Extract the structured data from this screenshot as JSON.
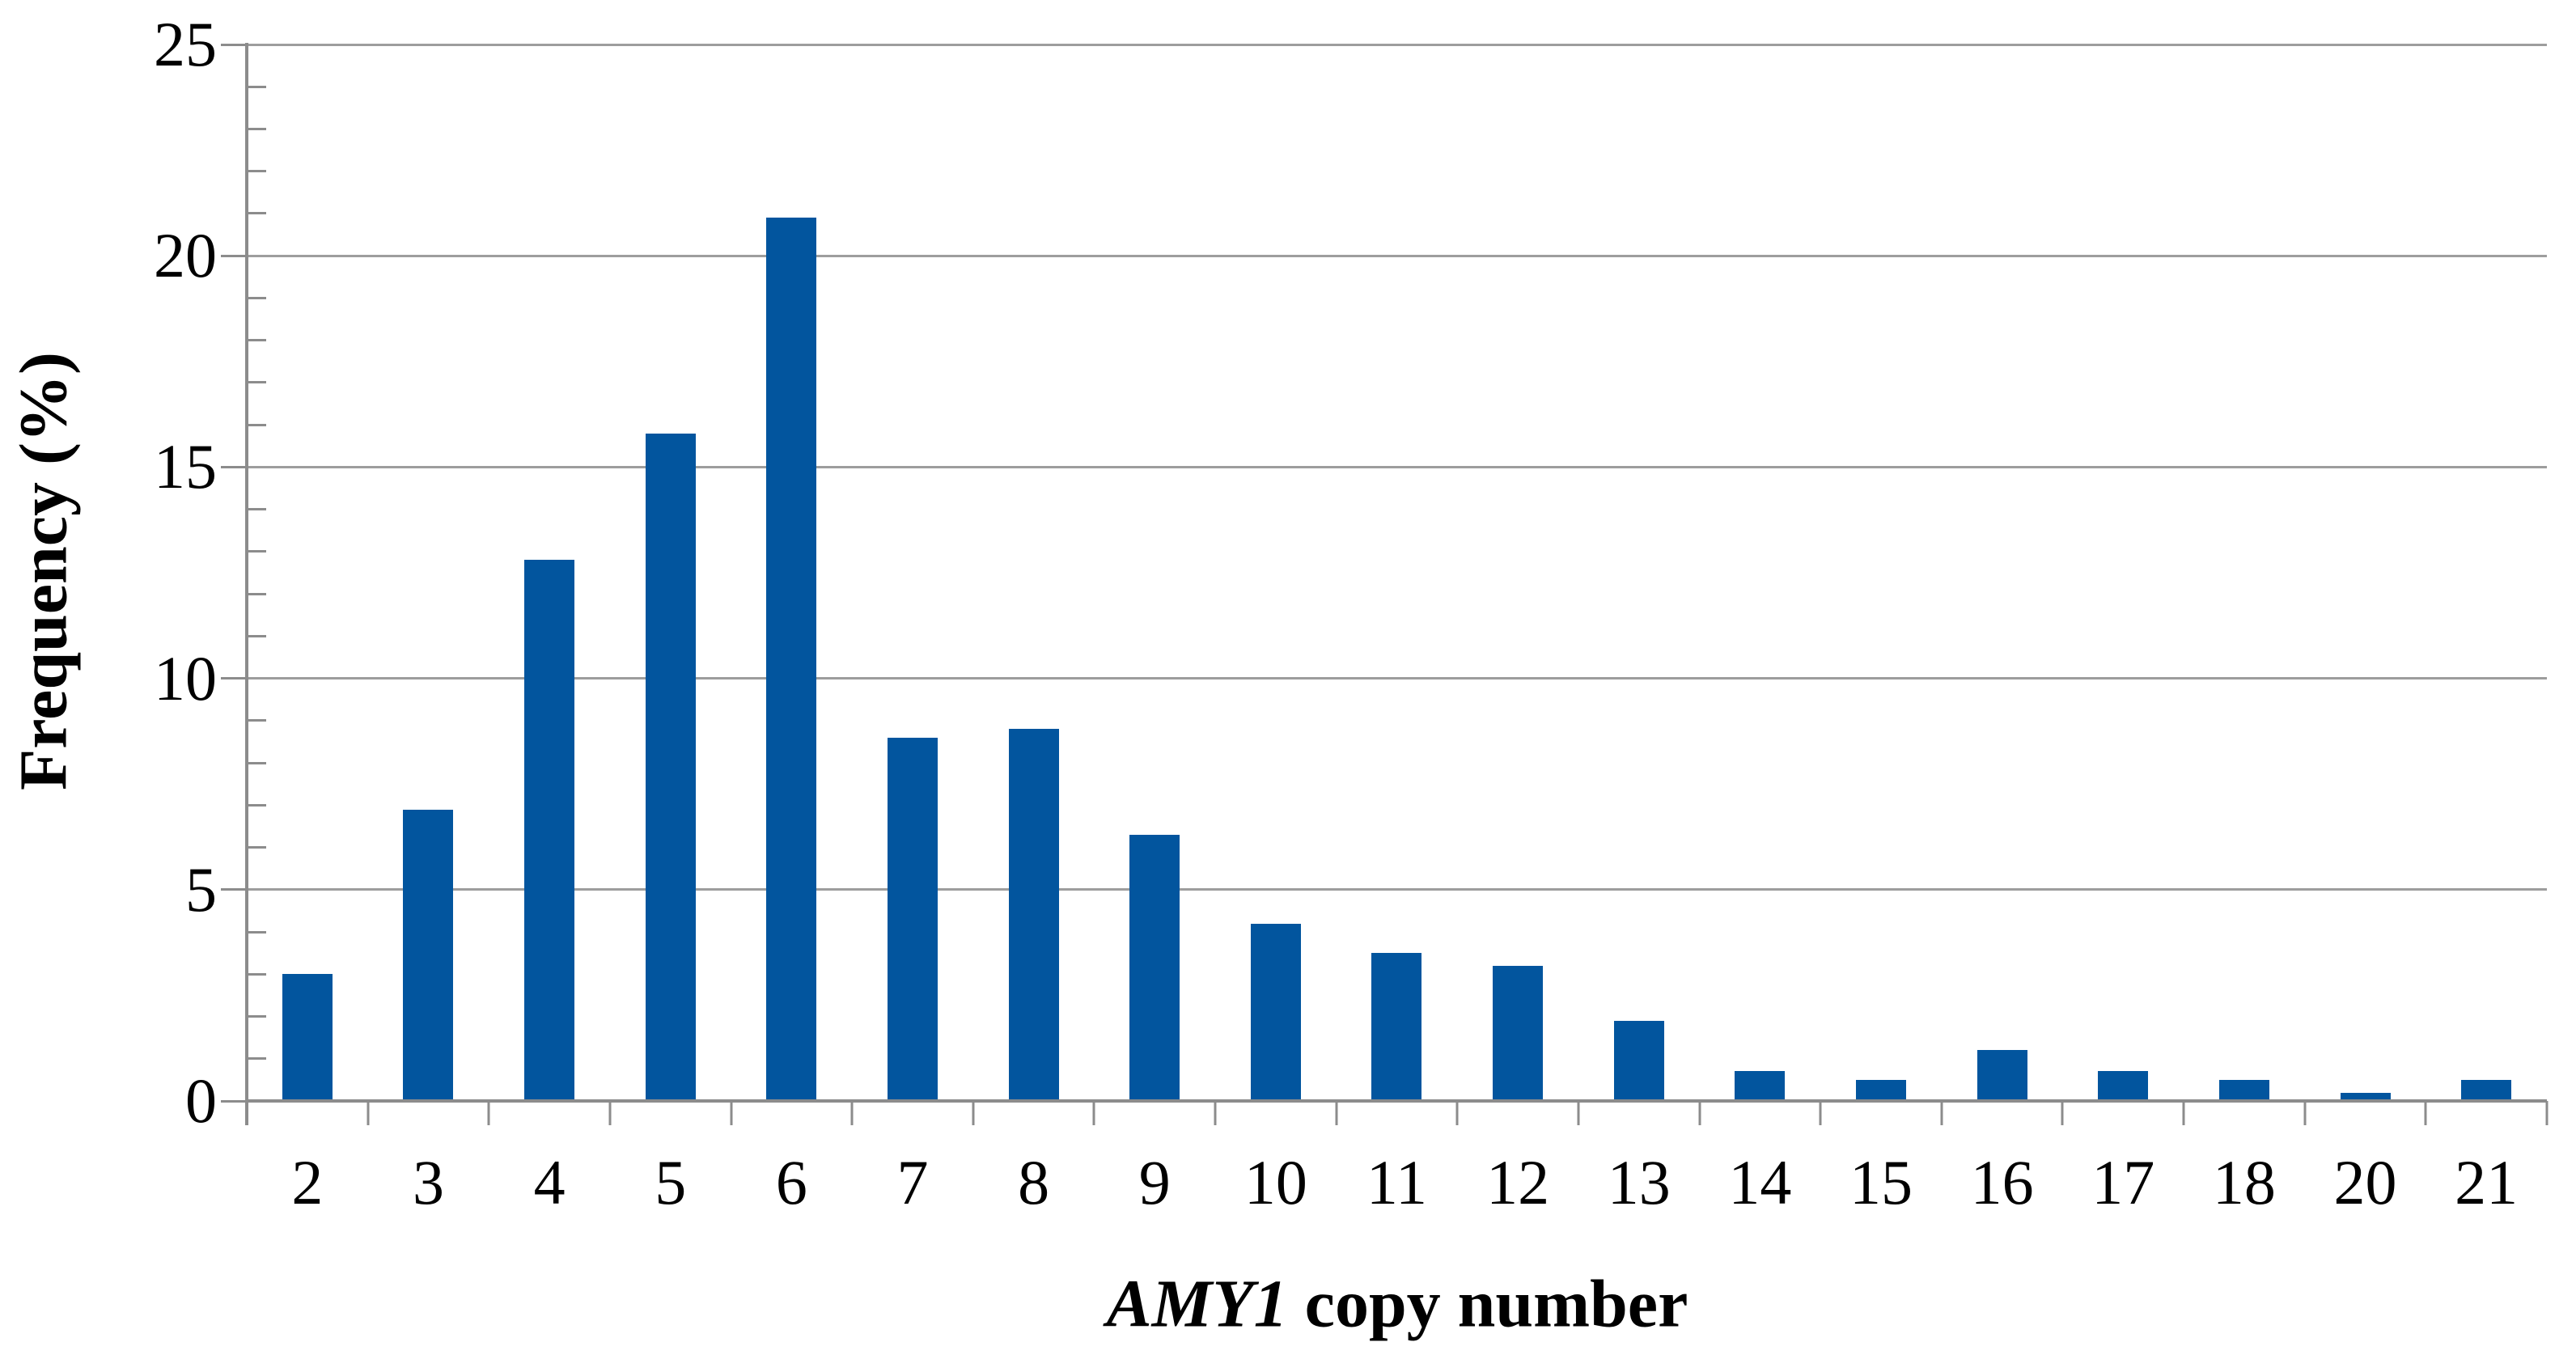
{
  "chart_data": {
    "type": "bar",
    "title": "",
    "categories": [
      "2",
      "3",
      "4",
      "5",
      "6",
      "7",
      "8",
      "9",
      "10",
      "11",
      "12",
      "13",
      "14",
      "15",
      "16",
      "17",
      "18",
      "20",
      "21"
    ],
    "values": [
      3.0,
      6.9,
      12.8,
      15.8,
      20.9,
      8.6,
      8.8,
      6.3,
      4.2,
      3.5,
      3.2,
      1.9,
      0.7,
      0.5,
      1.2,
      0.7,
      0.5,
      0.2,
      0.5
    ],
    "xlabel": "AMY1 copy number",
    "xlabel_gene": "AMY1",
    "xlabel_rest": " copy number",
    "ylabel": "Frequency (%)",
    "ylim": [
      0,
      25
    ],
    "y_major_ticks": [
      0,
      5,
      10,
      15,
      20,
      25
    ],
    "y_tick_labels": [
      "0",
      "5",
      "10",
      "15",
      "20",
      "25"
    ],
    "y_minor_step": 1,
    "grid": "horizontal-major-only",
    "legend": "none",
    "bar_color": "#02559E",
    "grid_color": "#9D9D9D",
    "axis_color": "#8C8C8C",
    "text_color": "#000000"
  }
}
